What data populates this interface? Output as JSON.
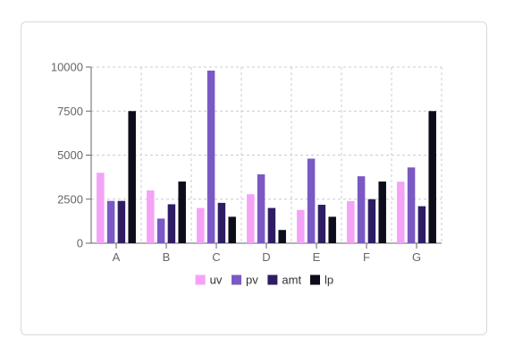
{
  "chart_data": {
    "type": "bar",
    "categories": [
      "A",
      "B",
      "C",
      "D",
      "E",
      "F",
      "G"
    ],
    "series": [
      {
        "name": "uv",
        "color": "#f4a3f7",
        "values": [
          4000,
          3000,
          2000,
          2780,
          1890,
          2390,
          3490
        ]
      },
      {
        "name": "pv",
        "color": "#7b59c4",
        "values": [
          2400,
          1398,
          9800,
          3908,
          4800,
          3800,
          4300
        ]
      },
      {
        "name": "amt",
        "color": "#2e1d63",
        "values": [
          2400,
          2210,
          2290,
          2000,
          2181,
          2500,
          2100
        ]
      },
      {
        "name": "lp",
        "color": "#0d0c1a",
        "values": [
          7500,
          3500,
          1500,
          750,
          1500,
          3500,
          7500
        ]
      }
    ],
    "y_ticks": [
      "0",
      "2500",
      "5000",
      "7500",
      "10000"
    ],
    "ylim": [
      0,
      10000
    ],
    "grid": true,
    "legend_position": "bottom-center",
    "title": "",
    "xlabel": "",
    "ylabel": ""
  }
}
